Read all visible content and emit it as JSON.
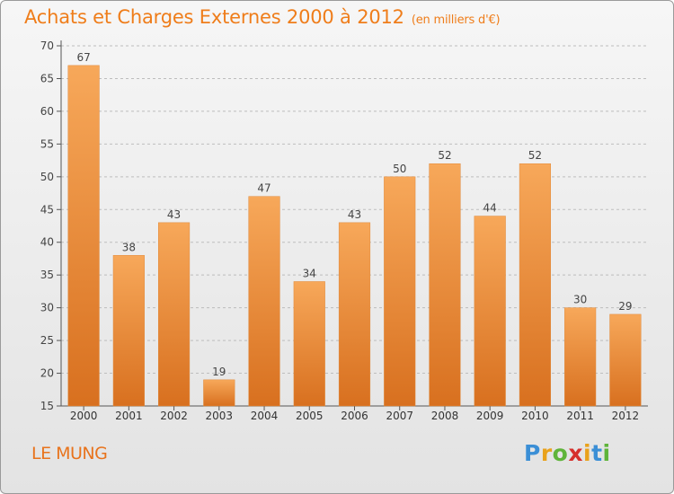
{
  "header": {
    "title": "Achats et Charges Externes 2000 à 2012",
    "subtitle": "(en milliers d'€)"
  },
  "commune": "LE MUNG",
  "logo": {
    "letters": [
      "P",
      "r",
      "o",
      "x",
      "i",
      "t",
      "i"
    ],
    "colors": [
      "#3b8fd6",
      "#e9a21c",
      "#5fb43a",
      "#d6302c",
      "#e9a21c",
      "#3b8fd6",
      "#5fb43a"
    ]
  },
  "colors": {
    "bar_top": "#f7a85a",
    "bar_bottom": "#d8701f",
    "title": "#ef7d1a",
    "grid": "#bdbdbd"
  },
  "chart_data": {
    "type": "bar",
    "title": "Achats et Charges Externes 2000 à 2012",
    "xlabel": "",
    "ylabel": "",
    "categories": [
      "2000",
      "2001",
      "2002",
      "2003",
      "2004",
      "2005",
      "2006",
      "2007",
      "2008",
      "2009",
      "2010",
      "2011",
      "2012"
    ],
    "values": [
      67,
      38,
      43,
      19,
      47,
      34,
      43,
      50,
      52,
      44,
      52,
      30,
      29
    ],
    "ylim": [
      15,
      70
    ],
    "yticks": [
      15,
      20,
      25,
      30,
      35,
      40,
      45,
      50,
      55,
      60,
      65,
      70
    ],
    "grid": true,
    "data_labels": true
  }
}
